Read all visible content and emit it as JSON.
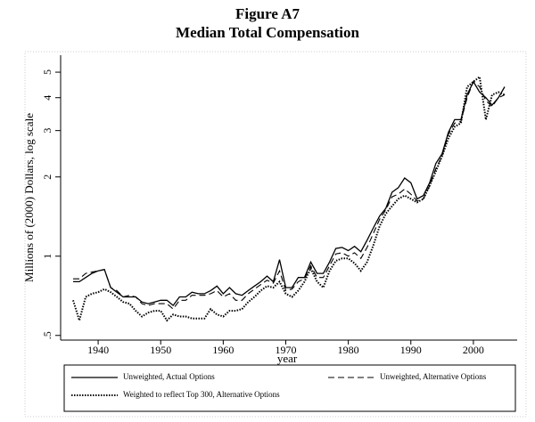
{
  "chart_data": {
    "type": "line",
    "title": "Figure A7",
    "subtitle": "Median Total Compensation",
    "x_label": "year",
    "y_label": "Millions of (2000) Dollars, log scale",
    "log_scale_y": true,
    "xlim": [
      1934,
      2007
    ],
    "xticks": [
      1940,
      1950,
      1960,
      1970,
      1980,
      1990,
      2000
    ],
    "ylim": [
      0.48,
      5.8
    ],
    "yticks": [
      {
        "value": 0.5,
        "label": ".5"
      },
      1,
      2,
      3,
      4,
      5
    ],
    "x": [
      1936,
      1937,
      1938,
      1939,
      1940,
      1941,
      1942,
      1943,
      1944,
      1945,
      1946,
      1947,
      1948,
      1949,
      1950,
      1951,
      1952,
      1953,
      1954,
      1955,
      1956,
      1957,
      1958,
      1959,
      1960,
      1961,
      1962,
      1963,
      1964,
      1965,
      1966,
      1967,
      1968,
      1969,
      1970,
      1971,
      1972,
      1973,
      1974,
      1975,
      1976,
      1977,
      1978,
      1979,
      1980,
      1981,
      1982,
      1983,
      1984,
      1985,
      1986,
      1987,
      1988,
      1989,
      1990,
      1991,
      1992,
      1993,
      1994,
      1995,
      1996,
      1997,
      1998,
      1999,
      2000,
      2001,
      2002,
      2003,
      2004,
      2005
    ],
    "series": [
      {
        "name": "Unweighted, Actual Options",
        "color": "#000000",
        "line_style": "solid",
        "values": [
          0.8,
          0.8,
          0.83,
          0.86,
          0.88,
          0.89,
          0.76,
          0.73,
          0.7,
          0.7,
          0.7,
          0.67,
          0.66,
          0.67,
          0.68,
          0.68,
          0.65,
          0.7,
          0.7,
          0.73,
          0.72,
          0.72,
          0.74,
          0.77,
          0.72,
          0.76,
          0.72,
          0.71,
          0.74,
          0.77,
          0.8,
          0.84,
          0.8,
          0.97,
          0.76,
          0.76,
          0.83,
          0.83,
          0.95,
          0.86,
          0.86,
          0.95,
          1.07,
          1.08,
          1.05,
          1.09,
          1.04,
          1.15,
          1.28,
          1.42,
          1.52,
          1.75,
          1.82,
          1.98,
          1.9,
          1.65,
          1.7,
          1.9,
          2.25,
          2.45,
          2.95,
          3.3,
          3.3,
          4.1,
          4.6,
          4.2,
          4.0,
          3.75,
          4.0,
          4.4
        ]
      },
      {
        "name": "Unweighted, Alternative Options",
        "color": "#000000",
        "line_style": "dashed",
        "values": [
          0.82,
          0.82,
          0.86,
          0.87,
          0.88,
          0.89,
          0.76,
          0.74,
          0.7,
          0.71,
          0.7,
          0.66,
          0.65,
          0.66,
          0.66,
          0.66,
          0.63,
          0.68,
          0.68,
          0.71,
          0.71,
          0.71,
          0.72,
          0.74,
          0.7,
          0.72,
          0.68,
          0.68,
          0.72,
          0.75,
          0.78,
          0.81,
          0.79,
          0.88,
          0.74,
          0.75,
          0.8,
          0.82,
          0.92,
          0.83,
          0.83,
          0.92,
          1.02,
          1.03,
          1.0,
          1.03,
          0.98,
          1.08,
          1.22,
          1.38,
          1.5,
          1.68,
          1.72,
          1.8,
          1.72,
          1.62,
          1.65,
          1.85,
          2.15,
          2.4,
          2.9,
          3.2,
          3.25,
          4.0,
          4.6,
          4.4,
          3.9,
          3.7,
          4.0,
          4.1
        ]
      },
      {
        "name": "Weighted to reflect Top 300, Alternative Options",
        "color": "#000000",
        "line_style": "dotted",
        "values": [
          0.68,
          0.57,
          0.7,
          0.72,
          0.73,
          0.75,
          0.73,
          0.7,
          0.67,
          0.66,
          0.62,
          0.59,
          0.61,
          0.62,
          0.62,
          0.57,
          0.6,
          0.59,
          0.59,
          0.58,
          0.58,
          0.58,
          0.63,
          0.6,
          0.59,
          0.62,
          0.62,
          0.63,
          0.67,
          0.7,
          0.74,
          0.77,
          0.76,
          0.8,
          0.72,
          0.7,
          0.74,
          0.8,
          0.9,
          0.8,
          0.76,
          0.88,
          0.96,
          0.98,
          0.98,
          0.94,
          0.88,
          0.95,
          1.1,
          1.3,
          1.45,
          1.55,
          1.65,
          1.7,
          1.65,
          1.6,
          1.65,
          1.85,
          2.1,
          2.4,
          2.8,
          3.1,
          3.2,
          4.4,
          4.6,
          4.8,
          3.3,
          4.1,
          4.2,
          4.1
        ]
      }
    ]
  }
}
